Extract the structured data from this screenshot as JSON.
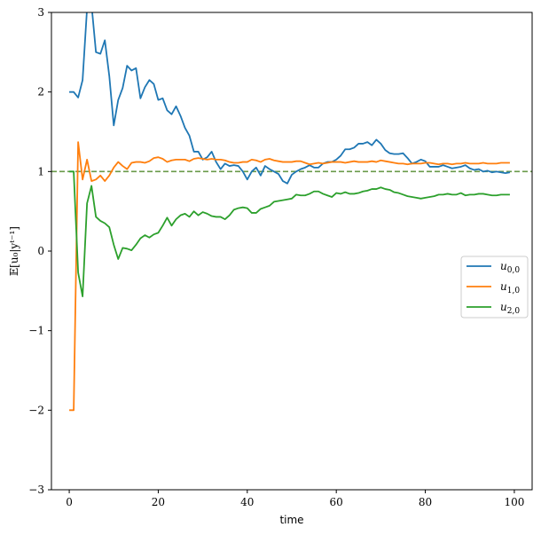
{
  "chart_data": {
    "type": "line",
    "xlabel": "time",
    "ylabel": "𝔼[u₀|yᵗ⁻¹]",
    "xlim": [
      -4,
      104
    ],
    "ylim": [
      -3,
      3
    ],
    "xticks": [
      0,
      20,
      40,
      60,
      80,
      100
    ],
    "yticks": [
      -3,
      -2,
      -1,
      0,
      1,
      2,
      3
    ],
    "xtick_labels": [
      "0",
      "20",
      "40",
      "60",
      "80",
      "100"
    ],
    "ytick_labels": [
      "−3",
      "−2",
      "−1",
      "0",
      "1",
      "2",
      "3"
    ],
    "grid": false,
    "legend_position": "center-right",
    "reference_line": {
      "y": 1,
      "color": "#6a9a4a",
      "style": "dashed"
    },
    "series": [
      {
        "name": "u0,0",
        "label_main": "u",
        "label_sub": "0,0",
        "color": "#1f77b4",
        "x": [
          0,
          1,
          2,
          3,
          4,
          5,
          6,
          7,
          8,
          9,
          10,
          11,
          12,
          13,
          14,
          15,
          16,
          17,
          18,
          19,
          20,
          21,
          22,
          23,
          24,
          25,
          26,
          27,
          28,
          29,
          30,
          31,
          32,
          33,
          34,
          35,
          36,
          37,
          38,
          39,
          40,
          41,
          42,
          43,
          44,
          45,
          46,
          47,
          48,
          49,
          50,
          51,
          52,
          53,
          54,
          55,
          56,
          57,
          58,
          59,
          60,
          61,
          62,
          63,
          64,
          65,
          66,
          67,
          68,
          69,
          70,
          71,
          72,
          73,
          74,
          75,
          76,
          77,
          78,
          79,
          80,
          81,
          82,
          83,
          84,
          85,
          86,
          87,
          88,
          89,
          90,
          91,
          92,
          93,
          94,
          95,
          96,
          97,
          98,
          99
        ],
        "values": [
          2.0,
          2.0,
          1.93,
          2.15,
          3.05,
          3.1,
          2.5,
          2.48,
          2.65,
          2.2,
          1.58,
          1.9,
          2.05,
          2.33,
          2.27,
          2.3,
          1.92,
          2.06,
          2.15,
          2.1,
          1.9,
          1.92,
          1.77,
          1.72,
          1.82,
          1.7,
          1.55,
          1.45,
          1.25,
          1.25,
          1.15,
          1.18,
          1.25,
          1.12,
          1.03,
          1.1,
          1.07,
          1.08,
          1.07,
          1.0,
          0.9,
          1.0,
          1.05,
          0.95,
          1.07,
          1.03,
          1.0,
          0.97,
          0.88,
          0.85,
          0.96,
          1.0,
          1.03,
          1.05,
          1.08,
          1.05,
          1.05,
          1.1,
          1.12,
          1.12,
          1.15,
          1.2,
          1.28,
          1.28,
          1.3,
          1.35,
          1.35,
          1.37,
          1.33,
          1.4,
          1.35,
          1.27,
          1.23,
          1.22,
          1.22,
          1.23,
          1.17,
          1.1,
          1.12,
          1.15,
          1.13,
          1.06,
          1.06,
          1.06,
          1.08,
          1.06,
          1.04,
          1.05,
          1.06,
          1.08,
          1.04,
          1.02,
          1.03,
          1.0,
          1.01,
          0.99,
          1.0,
          0.99,
          0.98,
          0.99
        ]
      },
      {
        "name": "u1,0",
        "label_main": "u",
        "label_sub": "1,0",
        "color": "#ff7f0e",
        "x": [
          0,
          1,
          2,
          3,
          4,
          5,
          6,
          7,
          8,
          9,
          10,
          11,
          12,
          13,
          14,
          15,
          16,
          17,
          18,
          19,
          20,
          21,
          22,
          23,
          24,
          25,
          26,
          27,
          28,
          29,
          30,
          31,
          32,
          33,
          34,
          35,
          36,
          37,
          38,
          39,
          40,
          41,
          42,
          43,
          44,
          45,
          46,
          47,
          48,
          49,
          50,
          51,
          52,
          53,
          54,
          55,
          56,
          57,
          58,
          59,
          60,
          61,
          62,
          63,
          64,
          65,
          66,
          67,
          68,
          69,
          70,
          71,
          72,
          73,
          74,
          75,
          76,
          77,
          78,
          79,
          80,
          81,
          82,
          83,
          84,
          85,
          86,
          87,
          88,
          89,
          90,
          91,
          92,
          93,
          94,
          95,
          96,
          97,
          98,
          99
        ],
        "values": [
          -2.0,
          -2.0,
          1.37,
          0.9,
          1.15,
          0.88,
          0.9,
          0.95,
          0.88,
          0.95,
          1.05,
          1.12,
          1.07,
          1.03,
          1.11,
          1.12,
          1.12,
          1.11,
          1.13,
          1.17,
          1.18,
          1.16,
          1.12,
          1.14,
          1.15,
          1.15,
          1.15,
          1.13,
          1.16,
          1.17,
          1.16,
          1.15,
          1.16,
          1.15,
          1.15,
          1.14,
          1.12,
          1.11,
          1.11,
          1.12,
          1.12,
          1.15,
          1.14,
          1.12,
          1.15,
          1.16,
          1.14,
          1.13,
          1.12,
          1.12,
          1.12,
          1.13,
          1.13,
          1.11,
          1.09,
          1.1,
          1.11,
          1.1,
          1.11,
          1.12,
          1.12,
          1.12,
          1.11,
          1.12,
          1.13,
          1.12,
          1.12,
          1.12,
          1.13,
          1.12,
          1.14,
          1.13,
          1.12,
          1.11,
          1.1,
          1.1,
          1.09,
          1.1,
          1.1,
          1.1,
          1.11,
          1.11,
          1.1,
          1.09,
          1.1,
          1.1,
          1.09,
          1.1,
          1.1,
          1.11,
          1.1,
          1.1,
          1.1,
          1.11,
          1.1,
          1.1,
          1.1,
          1.11,
          1.11,
          1.11
        ]
      },
      {
        "name": "u2,0",
        "label_main": "u",
        "label_sub": "2,0",
        "color": "#2ca02c",
        "x": [
          0,
          1,
          2,
          3,
          4,
          5,
          6,
          7,
          8,
          9,
          10,
          11,
          12,
          13,
          14,
          15,
          16,
          17,
          18,
          19,
          20,
          21,
          22,
          23,
          24,
          25,
          26,
          27,
          28,
          29,
          30,
          31,
          32,
          33,
          34,
          35,
          36,
          37,
          38,
          39,
          40,
          41,
          42,
          43,
          44,
          45,
          46,
          47,
          48,
          49,
          50,
          51,
          52,
          53,
          54,
          55,
          56,
          57,
          58,
          59,
          60,
          61,
          62,
          63,
          64,
          65,
          66,
          67,
          68,
          69,
          70,
          71,
          72,
          73,
          74,
          75,
          76,
          77,
          78,
          79,
          80,
          81,
          82,
          83,
          84,
          85,
          86,
          87,
          88,
          89,
          90,
          91,
          92,
          93,
          94,
          95,
          96,
          97,
          98,
          99
        ],
        "values": [
          1.0,
          1.0,
          -0.27,
          -0.57,
          0.6,
          0.82,
          0.43,
          0.38,
          0.35,
          0.3,
          0.08,
          -0.1,
          0.04,
          0.03,
          0.01,
          0.08,
          0.16,
          0.2,
          0.17,
          0.21,
          0.23,
          0.32,
          0.42,
          0.32,
          0.4,
          0.45,
          0.47,
          0.43,
          0.5,
          0.45,
          0.49,
          0.47,
          0.44,
          0.43,
          0.43,
          0.4,
          0.45,
          0.52,
          0.54,
          0.55,
          0.54,
          0.48,
          0.48,
          0.53,
          0.55,
          0.57,
          0.62,
          0.63,
          0.64,
          0.65,
          0.66,
          0.71,
          0.7,
          0.7,
          0.72,
          0.75,
          0.75,
          0.72,
          0.7,
          0.68,
          0.73,
          0.72,
          0.74,
          0.72,
          0.72,
          0.73,
          0.75,
          0.76,
          0.78,
          0.78,
          0.8,
          0.78,
          0.77,
          0.74,
          0.73,
          0.71,
          0.69,
          0.68,
          0.67,
          0.66,
          0.67,
          0.68,
          0.69,
          0.71,
          0.71,
          0.72,
          0.71,
          0.71,
          0.73,
          0.7,
          0.71,
          0.71,
          0.72,
          0.72,
          0.71,
          0.7,
          0.7,
          0.71,
          0.71,
          0.71
        ]
      }
    ]
  }
}
